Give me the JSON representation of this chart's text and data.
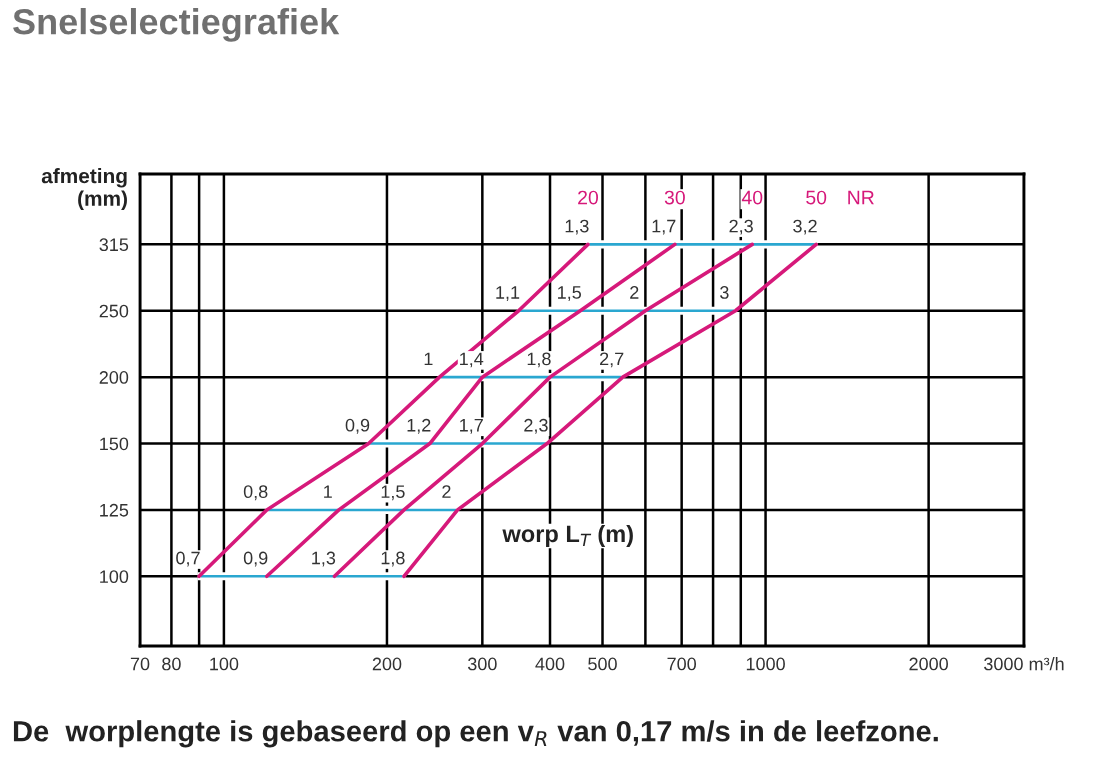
{
  "chart_data": {
    "type": "bar",
    "orientation": "horizontal",
    "title": "Snelselectiegrafiek",
    "ylabel": "afmeting\n(mm)",
    "legend_title": "NR",
    "categories": [
      "315",
      "250",
      "200",
      "150",
      "125",
      "100"
    ],
    "log": "x",
    "xlim": [
      70,
      3000
    ],
    "xticks": [
      70,
      80,
      {
        "value": 90,
        "label": null
      },
      100,
      200,
      300,
      400,
      500,
      {
        "value": 600,
        "label": null
      },
      700,
      {
        "value": 800,
        "label": null
      },
      {
        "value": 900,
        "label": null
      },
      1000,
      2000,
      {
        "value": 3000,
        "label": "3000 m³/h"
      }
    ],
    "grid": true,
    "legend": false,
    "series": [
      {
        "color": "#2aa7d0",
        "base": [
          470,
          350,
          250,
          185,
          120,
          90
        ],
        "values": [
          770,
          530,
          295,
          210,
          150,
          125
        ]
      },
      {
        "type": "line",
        "name": "20",
        "color": "#d6197a",
        "values": [
          470,
          350,
          250,
          185,
          120,
          90
        ]
      },
      {
        "type": "line",
        "name": "30",
        "color": "#d6197a",
        "values": [
          680,
          455,
          300,
          240,
          163,
          120
        ]
      },
      {
        "type": "line",
        "name": "40",
        "color": "#d6197a",
        "values": [
          945,
          600,
          400,
          300,
          215,
          160
        ]
      },
      {
        "type": "line",
        "name": "50",
        "color": "#d6197a",
        "values": [
          1240,
          880,
          545,
          395,
          270,
          215
        ]
      }
    ],
    "annotations": [
      "worp L$_{T}$ (m)",
      "De  worplengte is gebaseerd op een v$_{R}$ van 0,17 m/s in de leefzone.",
      {
        "text": "1,3",
        "x": 470,
        "y": "315"
      },
      {
        "text": "1,1",
        "x": 350,
        "y": "250"
      },
      {
        "text": "1",
        "x": 250,
        "y": "200"
      },
      {
        "text": "0,9",
        "x": 185,
        "y": "150"
      },
      {
        "text": "0,8",
        "x": 120,
        "y": "125"
      },
      {
        "text": "0,7",
        "x": 90,
        "y": "100"
      },
      {
        "text": "1,7",
        "x": 680,
        "y": "315"
      },
      {
        "text": "1,5",
        "x": 455,
        "y": "250"
      },
      {
        "text": "1,4",
        "x": 300,
        "y": "200"
      },
      {
        "text": "1,2",
        "x": 240,
        "y": "150"
      },
      {
        "text": "1",
        "x": 163,
        "y": "125"
      },
      {
        "text": "0,9",
        "x": 120,
        "y": "100"
      },
      {
        "text": "2,3",
        "x": 945,
        "y": "315"
      },
      {
        "text": "2",
        "x": 600,
        "y": "250"
      },
      {
        "text": "1,8",
        "x": 400,
        "y": "200"
      },
      {
        "text": "1,7",
        "x": 300,
        "y": "150"
      },
      {
        "text": "1,5",
        "x": 215,
        "y": "125"
      },
      {
        "text": "1,3",
        "x": 160,
        "y": "100"
      },
      {
        "text": "3,2",
        "x": 1240,
        "y": "315"
      },
      {
        "text": "3",
        "x": 880,
        "y": "250"
      },
      {
        "text": "2,7",
        "x": 545,
        "y": "200"
      },
      {
        "text": "2,3",
        "x": 395,
        "y": "150"
      },
      {
        "text": "2",
        "x": 270,
        "y": "125"
      },
      {
        "text": "1,8",
        "x": 215,
        "y": "100"
      }
    ]
  }
}
